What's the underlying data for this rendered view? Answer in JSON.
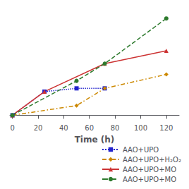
{
  "chart_data": {
    "type": "line",
    "xlabel": "Time (h)",
    "series": [
      {
        "name": "AAO+UPO",
        "color": "#2222cc",
        "marker": "square",
        "line_style": "dotted",
        "x": [
          0,
          25,
          50,
          72
        ],
        "values": [
          0,
          22,
          25,
          25
        ]
      },
      {
        "name": "AAO+UPO+H₂O₂",
        "color": "#cc8800",
        "marker": "diamond",
        "line_style": "dashdot",
        "x": [
          0,
          50,
          72,
          120
        ],
        "values": [
          0,
          9,
          25,
          38
        ]
      },
      {
        "name": "AAO+UPO+MO",
        "color": "#cc3333",
        "marker": "triangle",
        "line_style": "solid",
        "x": [
          0,
          25,
          72,
          120
        ],
        "values": [
          0,
          22,
          48,
          60
        ]
      },
      {
        "name": "AAO+UPO+MO",
        "color": "#2d7a2d",
        "marker": "circle",
        "line_style": "dashed",
        "x": [
          0,
          50,
          72,
          120
        ],
        "values": [
          0,
          32,
          48,
          90
        ]
      }
    ],
    "xlim": [
      -2,
      130
    ],
    "xticks": [
      0,
      20,
      40,
      60,
      80,
      100,
      120
    ],
    "ylim": [
      -3,
      98
    ],
    "tick_labels": "x",
    "grid": false,
    "legend": "lower right"
  }
}
